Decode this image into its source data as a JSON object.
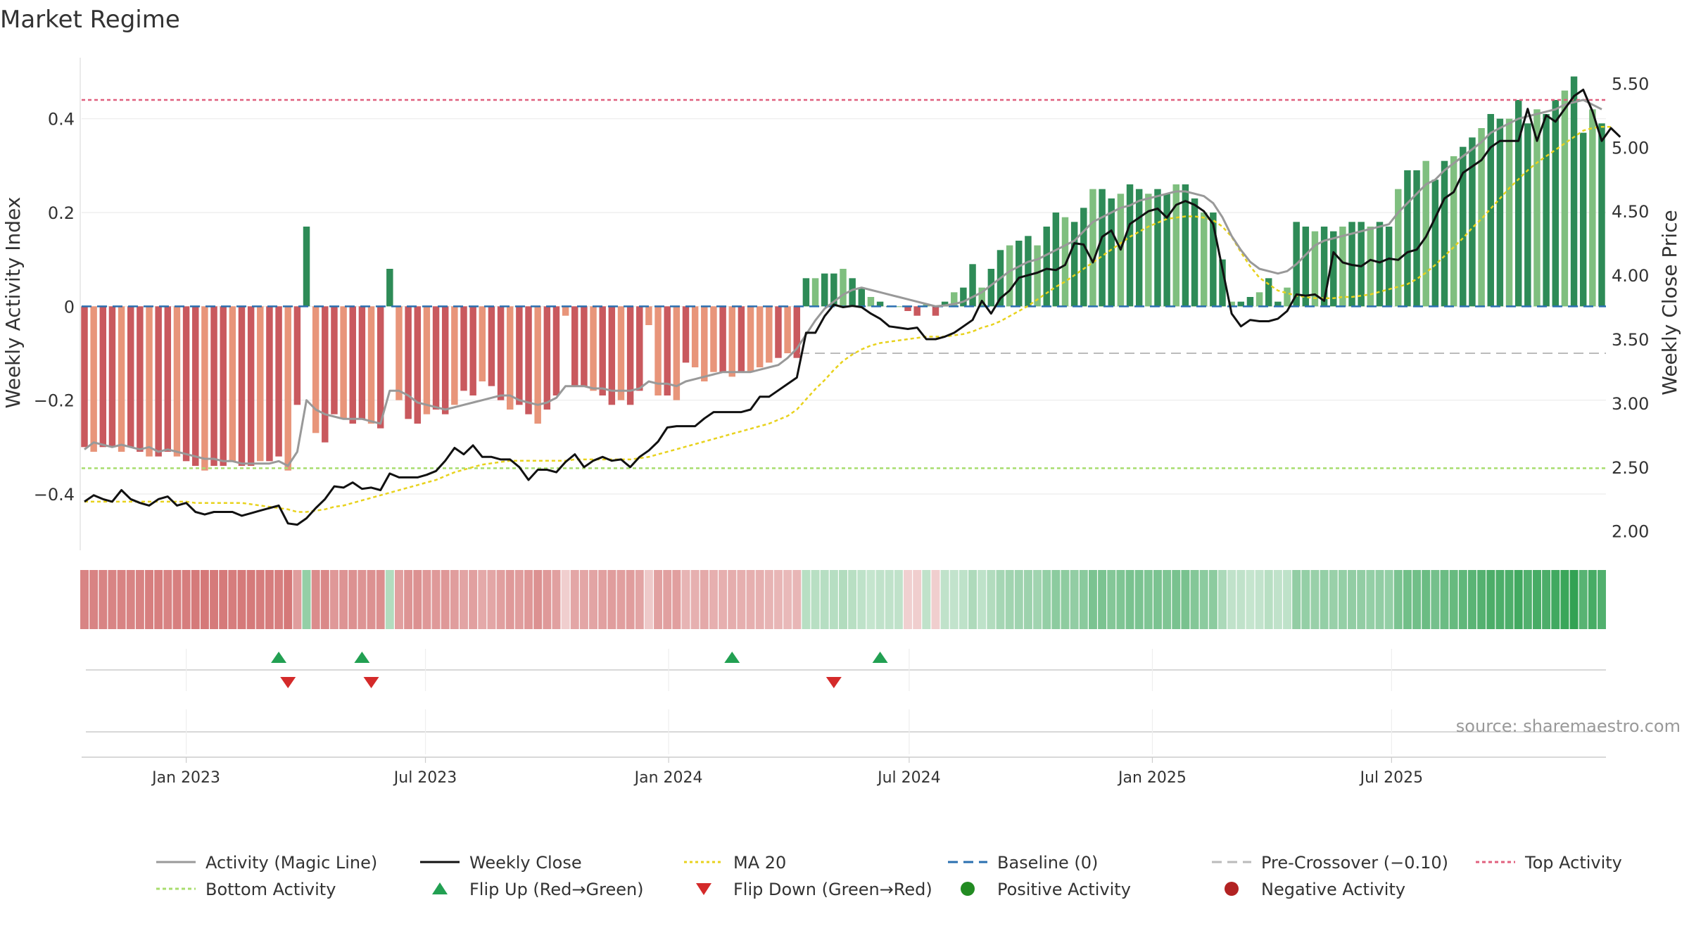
{
  "title": "Market Regime",
  "source": "source: sharemaestro.com",
  "y_left_label": "Weekly Activity Index",
  "y_right_label": "Weekly Close Price",
  "colors": {
    "pos_dark": "#2e8b57",
    "pos_light": "#7fbf7f",
    "neg_dark": "#c9595e",
    "neg_light": "#e8957a",
    "magic": "#999999",
    "close": "#111111",
    "ma": "#e8d21d",
    "baseline": "#2a6fb0",
    "pre": "#bbbbbb",
    "top": "#e0607e",
    "bottom": "#a8dd6e",
    "flip_up": "#22a052",
    "flip_down": "#d42a2a"
  },
  "legend": [
    {
      "label": "Activity (Magic Line)",
      "kind": "line",
      "color": "#999999",
      "dash": ""
    },
    {
      "label": "Weekly Close",
      "kind": "line",
      "color": "#111111",
      "dash": ""
    },
    {
      "label": "MA 20",
      "kind": "line",
      "color": "#e8d21d",
      "dash": "4,4"
    },
    {
      "label": "Baseline (0)",
      "kind": "line",
      "color": "#2a6fb0",
      "dash": "14,8"
    },
    {
      "label": "Pre-Crossover (−0.10)",
      "kind": "line",
      "color": "#bbbbbb",
      "dash": "14,8"
    },
    {
      "label": "Top Activity",
      "kind": "line",
      "color": "#e0607e",
      "dash": "5,4"
    },
    {
      "label": "Bottom Activity",
      "kind": "line",
      "color": "#a8dd6e",
      "dash": "5,4"
    },
    {
      "label": "Flip Up (Red→Green)",
      "kind": "tri-up",
      "color": "#22a052",
      "dash": ""
    },
    {
      "label": "Flip Down (Green→Red)",
      "kind": "tri-down",
      "color": "#d42a2a",
      "dash": ""
    },
    {
      "label": "Positive Activity",
      "kind": "dot",
      "color": "#228b22",
      "dash": ""
    },
    {
      "label": "Negative Activity",
      "kind": "dot",
      "color": "#b22222",
      "dash": ""
    }
  ],
  "chart_data": {
    "type": "bar",
    "start_date": "2022-10-16",
    "x_ticks": [
      {
        "date": "2023-01-01",
        "label": "Jan 2023"
      },
      {
        "date": "2023-07-01",
        "label": "Jul 2023"
      },
      {
        "date": "2024-01-01",
        "label": "Jan 2024"
      },
      {
        "date": "2024-07-01",
        "label": "Jul 2024"
      },
      {
        "date": "2025-01-01",
        "label": "Jan 2025"
      },
      {
        "date": "2025-07-01",
        "label": "Jul 2025"
      }
    ],
    "y_left": {
      "ticks": [
        0.4,
        0.2,
        0,
        -0.2,
        -0.4
      ],
      "tick_labels": [
        "0.4",
        "0.2",
        "0",
        "−0.2",
        "−0.4"
      ],
      "range": [
        -0.52,
        0.53
      ]
    },
    "y_right": {
      "ticks": [
        5.5,
        5.0,
        4.5,
        4.0,
        3.5,
        3.0,
        2.5,
        2.0
      ],
      "tick_labels": [
        "5.50",
        "5.00",
        "4.50",
        "4.00",
        "3.50",
        "3.00",
        "2.50",
        "2.00"
      ],
      "range": [
        1.85,
        5.7
      ]
    },
    "reference_lines": {
      "baseline": 0,
      "pre_crossover": -0.1,
      "top_activity": 0.44,
      "bottom_activity": -0.345
    },
    "activity": [
      -0.3,
      -0.31,
      -0.3,
      -0.3,
      -0.31,
      -0.3,
      -0.31,
      -0.32,
      -0.32,
      -0.31,
      -0.32,
      -0.33,
      -0.34,
      -0.35,
      -0.34,
      -0.34,
      -0.33,
      -0.34,
      -0.34,
      -0.33,
      -0.33,
      -0.32,
      -0.35,
      -0.21,
      0.17,
      -0.27,
      -0.29,
      -0.23,
      -0.24,
      -0.25,
      -0.24,
      -0.25,
      -0.26,
      0.08,
      -0.2,
      -0.24,
      -0.25,
      -0.23,
      -0.22,
      -0.23,
      -0.21,
      -0.18,
      -0.19,
      -0.16,
      -0.17,
      -0.2,
      -0.22,
      -0.21,
      -0.23,
      -0.25,
      -0.22,
      -0.19,
      -0.02,
      -0.17,
      -0.17,
      -0.18,
      -0.19,
      -0.21,
      -0.2,
      -0.21,
      -0.18,
      -0.04,
      -0.19,
      -0.19,
      -0.2,
      -0.12,
      -0.13,
      -0.16,
      -0.14,
      -0.14,
      -0.15,
      -0.14,
      -0.14,
      -0.13,
      -0.12,
      -0.11,
      -0.1,
      -0.11,
      0.06,
      0.06,
      0.07,
      0.07,
      0.08,
      0.06,
      0.04,
      0.02,
      0.01,
      0.0,
      0.0,
      -0.01,
      -0.02,
      0.005,
      -0.02,
      0.01,
      0.03,
      0.04,
      0.09,
      0.04,
      0.08,
      0.12,
      0.13,
      0.14,
      0.15,
      0.13,
      0.17,
      0.2,
      0.19,
      0.18,
      0.21,
      0.25,
      0.25,
      0.23,
      0.24,
      0.26,
      0.25,
      0.24,
      0.25,
      0.24,
      0.26,
      0.26,
      0.23,
      0.2,
      0.2,
      0.1,
      0.01,
      0.01,
      0.02,
      0.03,
      0.06,
      0.01,
      0.04,
      0.18,
      0.17,
      0.16,
      0.17,
      0.16,
      0.17,
      0.18,
      0.18,
      0.17,
      0.18,
      0.17,
      0.25,
      0.29,
      0.29,
      0.31,
      0.27,
      0.31,
      0.32,
      0.34,
      0.36,
      0.38,
      0.41,
      0.4,
      0.4,
      0.44,
      0.39,
      0.42,
      0.41,
      0.44,
      0.46,
      0.49,
      0.37,
      0.42,
      0.39
    ],
    "magic_line": [
      -0.305,
      -0.29,
      -0.295,
      -0.3,
      -0.295,
      -0.3,
      -0.305,
      -0.3,
      -0.31,
      -0.305,
      -0.31,
      -0.315,
      -0.32,
      -0.325,
      -0.325,
      -0.33,
      -0.33,
      -0.335,
      -0.335,
      -0.335,
      -0.335,
      -0.33,
      -0.34,
      -0.31,
      -0.2,
      -0.22,
      -0.23,
      -0.235,
      -0.24,
      -0.24,
      -0.24,
      -0.245,
      -0.25,
      -0.18,
      -0.18,
      -0.19,
      -0.205,
      -0.21,
      -0.215,
      -0.22,
      -0.215,
      -0.21,
      -0.205,
      -0.2,
      -0.195,
      -0.19,
      -0.19,
      -0.2,
      -0.205,
      -0.21,
      -0.205,
      -0.195,
      -0.17,
      -0.17,
      -0.17,
      -0.175,
      -0.175,
      -0.18,
      -0.18,
      -0.18,
      -0.175,
      -0.16,
      -0.165,
      -0.165,
      -0.17,
      -0.16,
      -0.155,
      -0.15,
      -0.145,
      -0.14,
      -0.14,
      -0.14,
      -0.14,
      -0.135,
      -0.13,
      -0.125,
      -0.11,
      -0.09,
      -0.06,
      -0.03,
      -0.005,
      0.01,
      0.025,
      0.035,
      0.04,
      0.035,
      0.03,
      0.025,
      0.02,
      0.015,
      0.01,
      0.005,
      0.0,
      0.002,
      0.005,
      0.01,
      0.02,
      0.03,
      0.045,
      0.06,
      0.075,
      0.085,
      0.095,
      0.1,
      0.11,
      0.12,
      0.13,
      0.14,
      0.16,
      0.18,
      0.19,
      0.2,
      0.21,
      0.215,
      0.225,
      0.23,
      0.235,
      0.24,
      0.245,
      0.245,
      0.24,
      0.235,
      0.22,
      0.19,
      0.15,
      0.12,
      0.095,
      0.08,
      0.075,
      0.07,
      0.075,
      0.09,
      0.11,
      0.13,
      0.14,
      0.145,
      0.15,
      0.155,
      0.16,
      0.165,
      0.17,
      0.175,
      0.2,
      0.22,
      0.24,
      0.26,
      0.27,
      0.29,
      0.305,
      0.32,
      0.335,
      0.35,
      0.37,
      0.38,
      0.39,
      0.4,
      0.405,
      0.41,
      0.415,
      0.42,
      0.43,
      0.435,
      0.44,
      0.43,
      0.42
    ],
    "close": [
      2.23,
      2.28,
      2.25,
      2.23,
      2.32,
      2.25,
      2.22,
      2.2,
      2.25,
      2.27,
      2.2,
      2.22,
      2.15,
      2.13,
      2.15,
      2.15,
      2.15,
      2.12,
      2.14,
      2.16,
      2.18,
      2.2,
      2.06,
      2.05,
      2.1,
      2.18,
      2.25,
      2.35,
      2.34,
      2.38,
      2.33,
      2.34,
      2.32,
      2.45,
      2.42,
      2.42,
      2.42,
      2.44,
      2.47,
      2.55,
      2.65,
      2.6,
      2.67,
      2.58,
      2.58,
      2.56,
      2.56,
      2.5,
      2.4,
      2.48,
      2.48,
      2.46,
      2.54,
      2.6,
      2.5,
      2.55,
      2.58,
      2.55,
      2.56,
      2.5,
      2.58,
      2.63,
      2.7,
      2.81,
      2.82,
      2.82,
      2.82,
      2.88,
      2.93,
      2.93,
      2.93,
      2.93,
      2.95,
      3.05,
      3.05,
      3.1,
      3.15,
      3.2,
      3.55,
      3.55,
      3.68,
      3.77,
      3.75,
      3.76,
      3.75,
      3.7,
      3.66,
      3.6,
      3.59,
      3.58,
      3.59,
      3.5,
      3.5,
      3.52,
      3.55,
      3.6,
      3.65,
      3.8,
      3.7,
      3.82,
      3.88,
      3.98,
      4.0,
      4.02,
      4.05,
      4.04,
      4.08,
      4.25,
      4.24,
      4.1,
      4.3,
      4.35,
      4.2,
      4.4,
      4.45,
      4.5,
      4.52,
      4.45,
      4.55,
      4.58,
      4.55,
      4.5,
      4.4,
      4.05,
      3.7,
      3.6,
      3.65,
      3.64,
      3.64,
      3.66,
      3.72,
      3.85,
      3.84,
      3.85,
      3.8,
      4.18,
      4.1,
      4.08,
      4.07,
      4.12,
      4.1,
      4.13,
      4.12,
      4.18,
      4.2,
      4.3,
      4.45,
      4.6,
      4.65,
      4.8,
      4.85,
      4.9,
      5.0,
      5.05,
      5.05,
      5.05,
      5.3,
      5.05,
      5.25,
      5.2,
      5.3,
      5.4,
      5.45,
      5.28,
      5.05,
      5.15,
      5.08
    ],
    "ma20": [
      2.23,
      2.23,
      2.23,
      2.23,
      2.23,
      2.23,
      2.23,
      2.23,
      2.23,
      2.23,
      2.23,
      2.23,
      2.22,
      2.22,
      2.22,
      2.22,
      2.22,
      2.22,
      2.21,
      2.2,
      2.19,
      2.18,
      2.17,
      2.15,
      2.15,
      2.16,
      2.17,
      2.19,
      2.2,
      2.22,
      2.24,
      2.26,
      2.28,
      2.3,
      2.32,
      2.34,
      2.36,
      2.38,
      2.4,
      2.43,
      2.46,
      2.48,
      2.5,
      2.52,
      2.53,
      2.54,
      2.55,
      2.55,
      2.55,
      2.55,
      2.55,
      2.55,
      2.55,
      2.56,
      2.56,
      2.56,
      2.56,
      2.56,
      2.56,
      2.56,
      2.57,
      2.58,
      2.6,
      2.62,
      2.64,
      2.66,
      2.68,
      2.7,
      2.72,
      2.74,
      2.76,
      2.78,
      2.8,
      2.82,
      2.84,
      2.87,
      2.9,
      2.95,
      3.03,
      3.11,
      3.18,
      3.26,
      3.33,
      3.38,
      3.42,
      3.45,
      3.47,
      3.48,
      3.49,
      3.5,
      3.51,
      3.52,
      3.52,
      3.52,
      3.53,
      3.54,
      3.56,
      3.59,
      3.61,
      3.64,
      3.68,
      3.72,
      3.76,
      3.81,
      3.86,
      3.91,
      3.95,
      4.0,
      4.05,
      4.1,
      4.15,
      4.2,
      4.25,
      4.3,
      4.34,
      4.38,
      4.41,
      4.44,
      4.45,
      4.46,
      4.46,
      4.45,
      4.43,
      4.38,
      4.3,
      4.18,
      4.07,
      3.98,
      3.93,
      3.88,
      3.86,
      3.84,
      3.83,
      3.82,
      3.82,
      3.82,
      3.83,
      3.83,
      3.84,
      3.85,
      3.87,
      3.89,
      3.91,
      3.93,
      3.97,
      4.02,
      4.08,
      4.15,
      4.22,
      4.29,
      4.37,
      4.44,
      4.52,
      4.6,
      4.68,
      4.75,
      4.82,
      4.88,
      4.93,
      4.98,
      5.03,
      5.08,
      5.13,
      5.15,
      5.16,
      5.16
    ],
    "flip_up_dates": [
      "2023-03-12",
      "2023-05-14",
      "2024-02-18",
      "2024-06-09"
    ],
    "flip_down_dates": [
      "2023-03-19",
      "2023-05-21",
      "2024-05-05"
    ]
  }
}
